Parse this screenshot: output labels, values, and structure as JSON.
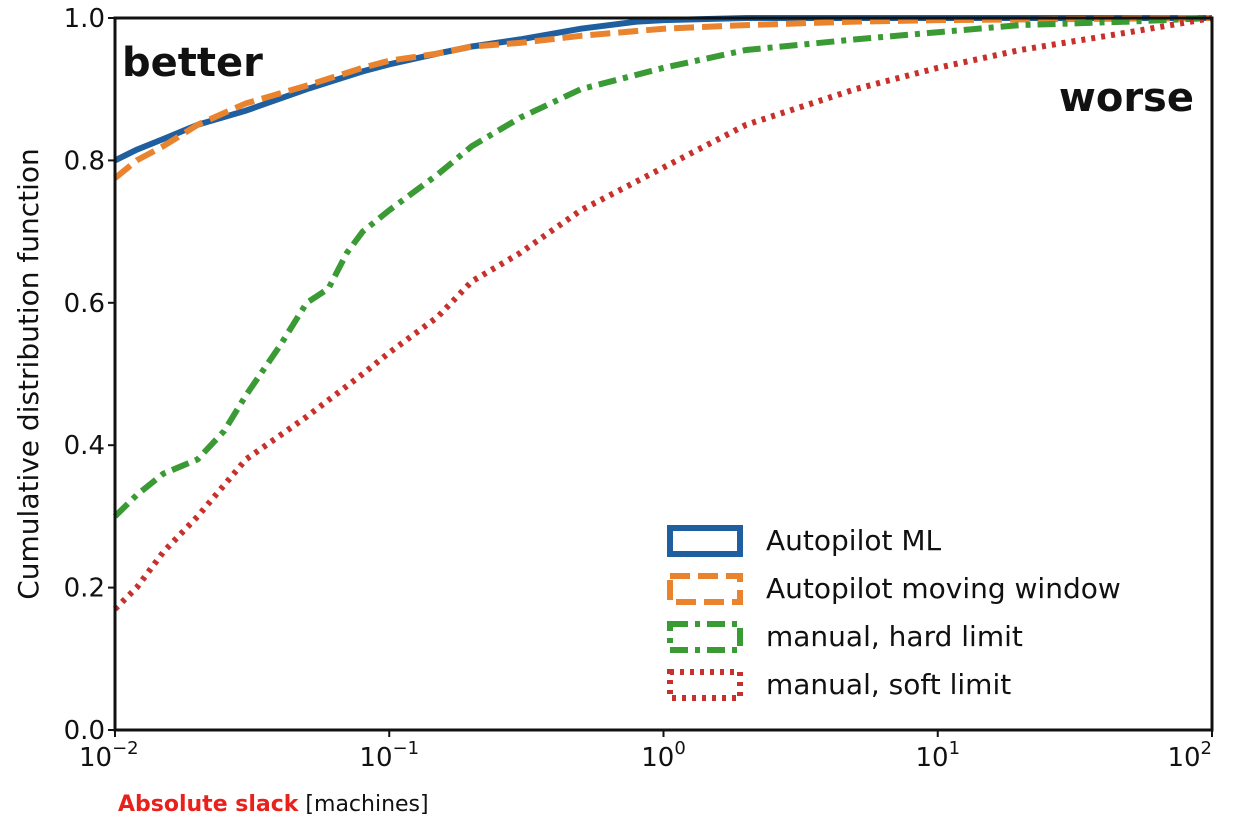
{
  "chart_data": {
    "type": "line",
    "x_scale": "log",
    "xlim": [
      0.01,
      100
    ],
    "ylim": [
      0.0,
      1.0
    ],
    "ylabel": "Cumulative distribution function",
    "xlabel_emphasis": "Absolute slack",
    "xlabel_rest": " [machines]",
    "x_ticks": [
      {
        "value": 0.01,
        "base": "10",
        "exp": "−2"
      },
      {
        "value": 0.1,
        "base": "10",
        "exp": "−1"
      },
      {
        "value": 1,
        "base": "10",
        "exp": "0"
      },
      {
        "value": 10,
        "base": "10",
        "exp": "1"
      },
      {
        "value": 100,
        "base": "10",
        "exp": "2"
      }
    ],
    "y_ticks": [
      "0.0",
      "0.2",
      "0.4",
      "0.6",
      "0.8",
      "1.0"
    ],
    "y_tick_values": [
      0.0,
      0.2,
      0.4,
      0.6,
      0.8,
      1.0
    ],
    "annotations": {
      "better": "better",
      "worse": "worse"
    },
    "grid": false,
    "legend_position": "lower-right",
    "series": [
      {
        "name": "Autopilot ML",
        "color": "#1f5f9f",
        "style": "solid",
        "x": [
          0.01,
          0.012,
          0.015,
          0.02,
          0.03,
          0.05,
          0.08,
          0.1,
          0.15,
          0.2,
          0.3,
          0.5,
          0.8,
          1,
          2,
          5,
          10,
          100
        ],
        "y": [
          0.8,
          0.815,
          0.83,
          0.85,
          0.87,
          0.9,
          0.925,
          0.935,
          0.95,
          0.96,
          0.97,
          0.985,
          0.995,
          0.997,
          1.0,
          1.0,
          1.0,
          1.0
        ]
      },
      {
        "name": "Autopilot moving window",
        "color": "#e9832e",
        "style": "dashed",
        "x": [
          0.01,
          0.012,
          0.015,
          0.02,
          0.03,
          0.05,
          0.08,
          0.1,
          0.15,
          0.2,
          0.3,
          0.5,
          1,
          2,
          5,
          10,
          100
        ],
        "y": [
          0.775,
          0.8,
          0.82,
          0.85,
          0.88,
          0.905,
          0.93,
          0.94,
          0.95,
          0.96,
          0.965,
          0.975,
          0.985,
          0.99,
          0.995,
          0.997,
          1.0
        ]
      },
      {
        "name": "manual, hard limit",
        "color": "#3a9a34",
        "style": "dashdot",
        "x": [
          0.01,
          0.012,
          0.015,
          0.02,
          0.025,
          0.03,
          0.04,
          0.05,
          0.06,
          0.07,
          0.08,
          0.1,
          0.15,
          0.2,
          0.3,
          0.5,
          1,
          2,
          5,
          10,
          20,
          50,
          100
        ],
        "y": [
          0.3,
          0.33,
          0.36,
          0.38,
          0.42,
          0.47,
          0.54,
          0.6,
          0.62,
          0.67,
          0.7,
          0.73,
          0.78,
          0.82,
          0.86,
          0.9,
          0.93,
          0.955,
          0.97,
          0.98,
          0.99,
          0.995,
          1.0
        ]
      },
      {
        "name": "manual, soft limit",
        "color": "#c8302c",
        "style": "dotted",
        "x": [
          0.01,
          0.012,
          0.015,
          0.02,
          0.03,
          0.05,
          0.08,
          0.1,
          0.15,
          0.2,
          0.3,
          0.5,
          1,
          2,
          5,
          10,
          20,
          50,
          100
        ],
        "y": [
          0.17,
          0.2,
          0.25,
          0.3,
          0.38,
          0.44,
          0.5,
          0.53,
          0.58,
          0.63,
          0.67,
          0.73,
          0.79,
          0.85,
          0.9,
          0.93,
          0.955,
          0.98,
          1.0
        ]
      }
    ]
  }
}
